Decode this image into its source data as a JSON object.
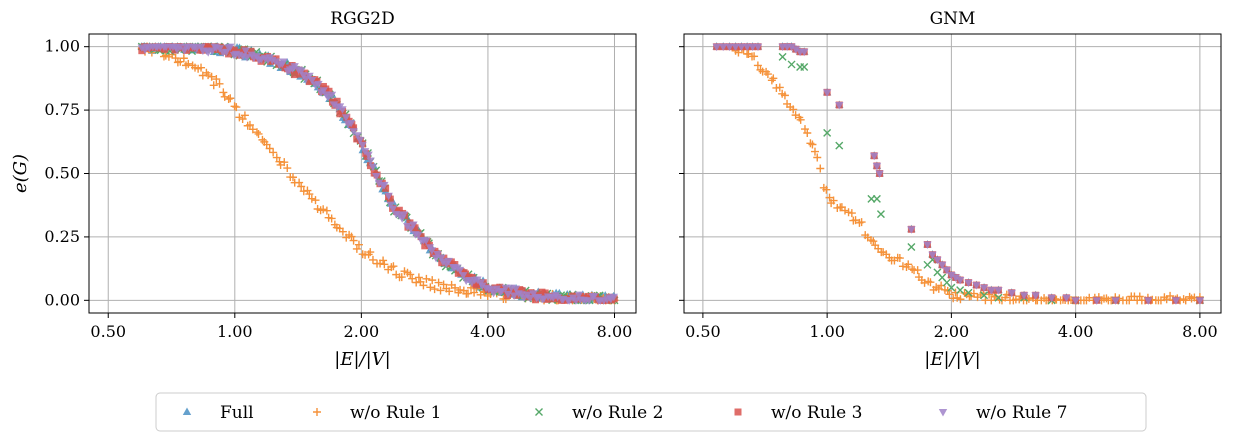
{
  "chart_data": [
    {
      "type": "scatter",
      "title": "RGG2D",
      "xlabel": "|E|/|V|",
      "ylabel": "e(G)",
      "xscale": "log2",
      "xlim": [
        0.45,
        9.0
      ],
      "ylim": [
        -0.05,
        1.05
      ],
      "xticks": [
        0.5,
        1,
        2,
        4,
        8
      ],
      "xtick_labels": [
        "0.50",
        "1.00",
        "2.00",
        "4.00",
        "8.00"
      ],
      "yticks": [
        0,
        0.25,
        0.5,
        0.75,
        1.0
      ],
      "ytick_labels": [
        "0.00",
        "0.25",
        "0.50",
        "0.75",
        "1.00"
      ],
      "grid": true,
      "series": [
        {
          "name": "Full",
          "curve": [
            [
              0.6,
              1.0
            ],
            [
              0.8,
              1.0
            ],
            [
              0.95,
              0.99
            ],
            [
              1.1,
              0.97
            ],
            [
              1.3,
              0.93
            ],
            [
              1.5,
              0.88
            ],
            [
              1.7,
              0.8
            ],
            [
              1.9,
              0.68
            ],
            [
              2.05,
              0.58
            ],
            [
              2.2,
              0.48
            ],
            [
              2.4,
              0.36
            ],
            [
              2.7,
              0.27
            ],
            [
              3.0,
              0.18
            ],
            [
              3.5,
              0.1
            ],
            [
              4.0,
              0.05
            ],
            [
              5.0,
              0.02
            ],
            [
              6.0,
              0.01
            ],
            [
              8.0,
              0.0
            ]
          ]
        },
        {
          "name": "w/o Rule 1",
          "curve": [
            [
              0.6,
              1.0
            ],
            [
              0.7,
              0.97
            ],
            [
              0.8,
              0.92
            ],
            [
              0.9,
              0.86
            ],
            [
              1.0,
              0.76
            ],
            [
              1.1,
              0.68
            ],
            [
              1.25,
              0.57
            ],
            [
              1.4,
              0.47
            ],
            [
              1.6,
              0.36
            ],
            [
              1.8,
              0.28
            ],
            [
              2.0,
              0.2
            ],
            [
              2.3,
              0.13
            ],
            [
              2.6,
              0.09
            ],
            [
              3.0,
              0.06
            ],
            [
              3.5,
              0.04
            ],
            [
              4.0,
              0.03
            ],
            [
              5.0,
              0.01
            ],
            [
              8.0,
              0.0
            ]
          ]
        },
        {
          "name": "w/o Rule 2",
          "curve": [
            [
              0.6,
              1.0
            ],
            [
              0.8,
              1.0
            ],
            [
              0.95,
              0.99
            ],
            [
              1.1,
              0.97
            ],
            [
              1.3,
              0.93
            ],
            [
              1.5,
              0.88
            ],
            [
              1.7,
              0.8
            ],
            [
              1.9,
              0.68
            ],
            [
              2.05,
              0.58
            ],
            [
              2.2,
              0.48
            ],
            [
              2.4,
              0.36
            ],
            [
              2.7,
              0.27
            ],
            [
              3.0,
              0.18
            ],
            [
              3.5,
              0.1
            ],
            [
              4.0,
              0.05
            ],
            [
              5.0,
              0.02
            ],
            [
              6.0,
              0.01
            ],
            [
              8.0,
              0.0
            ]
          ]
        },
        {
          "name": "w/o Rule 3",
          "curve": [
            [
              0.6,
              1.0
            ],
            [
              0.8,
              1.0
            ],
            [
              0.95,
              0.99
            ],
            [
              1.1,
              0.97
            ],
            [
              1.3,
              0.93
            ],
            [
              1.5,
              0.88
            ],
            [
              1.7,
              0.8
            ],
            [
              1.9,
              0.68
            ],
            [
              2.05,
              0.58
            ],
            [
              2.2,
              0.48
            ],
            [
              2.4,
              0.36
            ],
            [
              2.7,
              0.27
            ],
            [
              3.0,
              0.18
            ],
            [
              3.5,
              0.1
            ],
            [
              4.0,
              0.05
            ],
            [
              5.0,
              0.02
            ],
            [
              6.0,
              0.01
            ],
            [
              8.0,
              0.0
            ]
          ]
        },
        {
          "name": "w/o Rule 7",
          "curve": [
            [
              0.6,
              1.0
            ],
            [
              0.8,
              1.0
            ],
            [
              0.95,
              0.99
            ],
            [
              1.1,
              0.97
            ],
            [
              1.3,
              0.93
            ],
            [
              1.5,
              0.88
            ],
            [
              1.7,
              0.8
            ],
            [
              1.9,
              0.68
            ],
            [
              2.05,
              0.58
            ],
            [
              2.2,
              0.48
            ],
            [
              2.4,
              0.36
            ],
            [
              2.7,
              0.27
            ],
            [
              3.0,
              0.18
            ],
            [
              3.5,
              0.1
            ],
            [
              4.0,
              0.05
            ],
            [
              5.0,
              0.02
            ],
            [
              6.0,
              0.01
            ],
            [
              8.0,
              0.0
            ]
          ]
        }
      ]
    },
    {
      "type": "scatter",
      "title": "GNM",
      "xlabel": "|E|/|V|",
      "ylabel": "",
      "xscale": "log2",
      "xlim": [
        0.45,
        9.0
      ],
      "ylim": [
        -0.05,
        1.05
      ],
      "xticks": [
        0.5,
        1,
        2,
        4,
        8
      ],
      "xtick_labels": [
        "0.50",
        "1.00",
        "2.00",
        "4.00",
        "8.00"
      ],
      "yticks": [
        0,
        0.25,
        0.5,
        0.75,
        1.0
      ],
      "ytick_labels": [
        "",
        "",
        "",
        "",
        ""
      ],
      "grid": true,
      "series": [
        {
          "name": "Full",
          "x_values": [
            0.54,
            0.56,
            0.58,
            0.6,
            0.62,
            0.64,
            0.66,
            0.68,
            0.78,
            0.8,
            0.82,
            0.84,
            0.86,
            0.88,
            1.0,
            1.07,
            1.3,
            1.32,
            1.34,
            1.6,
            1.75,
            1.8,
            1.85,
            1.9,
            1.95,
            2.0,
            2.05,
            2.1,
            2.2,
            2.3,
            2.4,
            2.5,
            2.6,
            2.8,
            3.0,
            3.2,
            3.5,
            3.8,
            4.0,
            4.5,
            5.0,
            6.0,
            7.0,
            8.0
          ],
          "y_values": [
            1.0,
            1.0,
            1.0,
            1.0,
            1.0,
            1.0,
            1.0,
            1.0,
            1.0,
            1.0,
            1.0,
            0.99,
            0.98,
            0.98,
            0.82,
            0.77,
            0.57,
            0.53,
            0.5,
            0.28,
            0.22,
            0.18,
            0.16,
            0.14,
            0.12,
            0.1,
            0.09,
            0.08,
            0.07,
            0.06,
            0.05,
            0.04,
            0.04,
            0.03,
            0.02,
            0.02,
            0.01,
            0.01,
            0.0,
            0.0,
            0.0,
            0.0,
            0.0,
            0.0
          ]
        },
        {
          "name": "w/o Rule 1",
          "curve": [
            [
              0.6,
              1.0
            ],
            [
              0.65,
              0.96
            ],
            [
              0.72,
              0.9
            ],
            [
              0.78,
              0.82
            ],
            [
              0.85,
              0.72
            ],
            [
              0.92,
              0.62
            ],
            [
              1.0,
              0.41
            ],
            [
              1.1,
              0.36
            ],
            [
              1.2,
              0.3
            ],
            [
              1.35,
              0.2
            ],
            [
              1.6,
              0.12
            ],
            [
              1.8,
              0.06
            ],
            [
              2.0,
              0.02
            ],
            [
              2.5,
              0.01
            ],
            [
              3.0,
              0.0
            ],
            [
              8.0,
              0.0
            ]
          ]
        },
        {
          "name": "w/o Rule 2",
          "x_values": [
            0.78,
            0.82,
            0.86,
            0.88,
            1.0,
            1.07,
            1.28,
            1.32,
            1.35,
            1.6,
            1.75,
            1.8,
            1.85,
            1.9,
            1.95,
            2.0,
            2.1,
            2.2,
            2.4,
            2.6,
            3.0,
            3.5,
            4.0,
            5.0,
            8.0
          ],
          "y_values": [
            0.96,
            0.93,
            0.92,
            0.92,
            0.66,
            0.61,
            0.4,
            0.4,
            0.34,
            0.21,
            0.14,
            0.16,
            0.11,
            0.09,
            0.07,
            0.05,
            0.04,
            0.03,
            0.02,
            0.01,
            0.01,
            0.0,
            0.0,
            0.0,
            0.0
          ]
        },
        {
          "name": "w/o Rule 3",
          "x_values": [
            0.54,
            0.56,
            0.58,
            0.6,
            0.62,
            0.64,
            0.66,
            0.68,
            0.78,
            0.8,
            0.82,
            0.84,
            0.86,
            0.88,
            1.0,
            1.07,
            1.3,
            1.32,
            1.34,
            1.6,
            1.75,
            1.8,
            1.85,
            1.9,
            1.95,
            2.0,
            2.05,
            2.1,
            2.2,
            2.3,
            2.4,
            2.5,
            2.6,
            2.8,
            3.0,
            3.2,
            3.5,
            3.8,
            4.0,
            4.5,
            5.0,
            6.0,
            7.0,
            8.0
          ],
          "y_values": [
            1.0,
            1.0,
            1.0,
            1.0,
            1.0,
            1.0,
            1.0,
            1.0,
            1.0,
            1.0,
            1.0,
            0.99,
            0.98,
            0.98,
            0.82,
            0.77,
            0.57,
            0.53,
            0.5,
            0.28,
            0.22,
            0.18,
            0.16,
            0.14,
            0.12,
            0.1,
            0.09,
            0.08,
            0.07,
            0.06,
            0.05,
            0.04,
            0.04,
            0.03,
            0.02,
            0.02,
            0.01,
            0.01,
            0.0,
            0.0,
            0.0,
            0.0,
            0.0,
            0.0
          ]
        },
        {
          "name": "w/o Rule 7",
          "x_values": [
            0.54,
            0.56,
            0.58,
            0.6,
            0.62,
            0.64,
            0.66,
            0.68,
            0.78,
            0.8,
            0.82,
            0.84,
            0.86,
            0.88,
            1.0,
            1.07,
            1.3,
            1.32,
            1.34,
            1.6,
            1.75,
            1.8,
            1.85,
            1.9,
            1.95,
            2.0,
            2.05,
            2.1,
            2.2,
            2.3,
            2.4,
            2.5,
            2.6,
            2.8,
            3.0,
            3.2,
            3.5,
            3.8,
            4.0,
            4.5,
            5.0,
            6.0,
            7.0,
            8.0
          ],
          "y_values": [
            1.0,
            1.0,
            1.0,
            1.0,
            1.0,
            1.0,
            1.0,
            1.0,
            1.0,
            1.0,
            1.0,
            0.99,
            0.98,
            0.98,
            0.82,
            0.77,
            0.57,
            0.53,
            0.5,
            0.28,
            0.22,
            0.18,
            0.16,
            0.14,
            0.12,
            0.1,
            0.09,
            0.08,
            0.07,
            0.06,
            0.05,
            0.04,
            0.04,
            0.03,
            0.02,
            0.02,
            0.01,
            0.01,
            0.0,
            0.0,
            0.0,
            0.0,
            0.0,
            0.0
          ]
        }
      ]
    }
  ],
  "legend": {
    "placement": "bottom-center",
    "entries": [
      {
        "name": "Full",
        "marker": "triangle-up",
        "color": "#4a90c4"
      },
      {
        "name": "w/o Rule 1",
        "marker": "plus",
        "color": "#f5923a"
      },
      {
        "name": "w/o Rule 2",
        "marker": "x",
        "color": "#55a868"
      },
      {
        "name": "w/o Rule 3",
        "marker": "square",
        "color": "#d9534f"
      },
      {
        "name": "w/o Rule 7",
        "marker": "triangle-down",
        "color": "#a082c9"
      }
    ]
  },
  "colors": {
    "grid": "#b0b0b0",
    "axis": "#000000"
  }
}
